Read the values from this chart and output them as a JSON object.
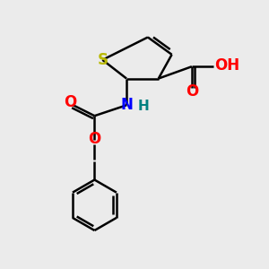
{
  "background_color": "#ebebeb",
  "atom_colors": {
    "S": "#b8b800",
    "O": "#ff0000",
    "N": "#0000ff",
    "H_on_N": "#008080",
    "C": "#000000"
  },
  "figsize": [
    3.0,
    3.0
  ],
  "dpi": 100,
  "xlim": [
    0,
    10
  ],
  "ylim": [
    0,
    10
  ]
}
